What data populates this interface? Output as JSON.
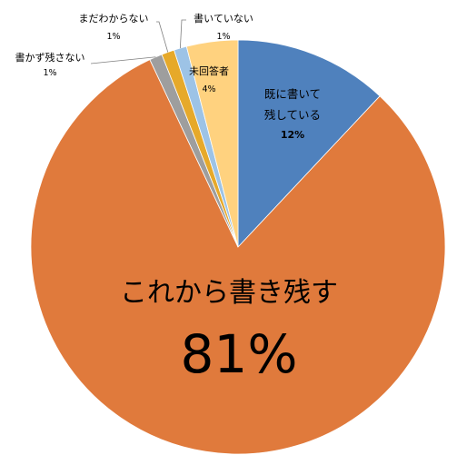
{
  "chart_data": {
    "type": "pie",
    "title": "",
    "slices": [
      {
        "label_lines": [
          "既に書いて",
          "残している"
        ],
        "value_label": "12%",
        "value": 12,
        "color": "#4f81bd"
      },
      {
        "label_lines": [
          "これから書き残す"
        ],
        "value_label": "81%",
        "value": 81,
        "color": "#e07a3c"
      },
      {
        "label_lines": [
          "書かず残さない"
        ],
        "value_label": "1%",
        "value": 1,
        "color": "#9e9e9e"
      },
      {
        "label_lines": [
          "まだわからない"
        ],
        "value_label": "1%",
        "value": 1,
        "color": "#e6a92a"
      },
      {
        "label_lines": [
          "書いていない"
        ],
        "value_label": "1%",
        "value": 1,
        "color": "#9dc3e6"
      },
      {
        "label_lines": [
          "未回答者"
        ],
        "value_label": "4%",
        "value": 4,
        "color": "#ffd27f"
      }
    ]
  }
}
